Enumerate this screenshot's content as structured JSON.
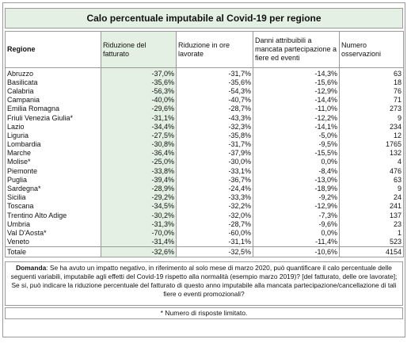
{
  "title": "Calo percentuale imputabile al Covid-19 per regione",
  "headers": {
    "region": "Regione",
    "fatturato": "Riduzione del fatturato",
    "ore": "Riduzione in ore lavorate",
    "danni": "Danni attribuibili a mancata partecipazione a fiere ed eventi",
    "osservazioni": "Numero osservazioni"
  },
  "rows": [
    {
      "region": "Abruzzo",
      "fatturato": "-37,0%",
      "ore": "-31,7%",
      "danni": "-14,3%",
      "n": "63"
    },
    {
      "region": "Basilicata",
      "fatturato": "-35,6%",
      "ore": "-35,6%",
      "danni": "-15,6%",
      "n": "18"
    },
    {
      "region": "Calabria",
      "fatturato": "-56,3%",
      "ore": "-54,3%",
      "danni": "-12,9%",
      "n": "76"
    },
    {
      "region": "Campania",
      "fatturato": "-40,0%",
      "ore": "-40,7%",
      "danni": "-14,4%",
      "n": "71"
    },
    {
      "region": "Emilia Romagna",
      "fatturato": "-29,6%",
      "ore": "-28,7%",
      "danni": "-11,0%",
      "n": "273"
    },
    {
      "region": "Friuli Venezia Giulia*",
      "fatturato": "-31,1%",
      "ore": "-43,3%",
      "danni": "-12,2%",
      "n": "9"
    },
    {
      "region": "Lazio",
      "fatturato": "-34,4%",
      "ore": "-32,3%",
      "danni": "-14,1%",
      "n": "234"
    },
    {
      "region": "Liguria",
      "fatturato": "-27,5%",
      "ore": "-35,8%",
      "danni": "-5,0%",
      "n": "12"
    },
    {
      "region": "Lombardia",
      "fatturato": "-30,8%",
      "ore": "-31,7%",
      "danni": "-9,5%",
      "n": "1765"
    },
    {
      "region": "Marche",
      "fatturato": "-36,4%",
      "ore": "-37,9%",
      "danni": "-15,5%",
      "n": "132"
    },
    {
      "region": "Molise*",
      "fatturato": "-25,0%",
      "ore": "-30,0%",
      "danni": "0,0%",
      "n": "4"
    },
    {
      "region": "Piemonte",
      "fatturato": "-33,8%",
      "ore": "-33,1%",
      "danni": "-8,4%",
      "n": "476"
    },
    {
      "region": "Puglia",
      "fatturato": "-39,4%",
      "ore": "-36,7%",
      "danni": "-13,0%",
      "n": "63"
    },
    {
      "region": "Sardegna*",
      "fatturato": "-28,9%",
      "ore": "-24,4%",
      "danni": "-18,9%",
      "n": "9"
    },
    {
      "region": "Sicilia",
      "fatturato": "-29,2%",
      "ore": "-33,3%",
      "danni": "-9,2%",
      "n": "24"
    },
    {
      "region": "Toscana",
      "fatturato": "-34,5%",
      "ore": "-32,2%",
      "danni": "-12,9%",
      "n": "241"
    },
    {
      "region": "Trentino Alto Adige",
      "fatturato": "-30,2%",
      "ore": "-32,0%",
      "danni": "-7,3%",
      "n": "137"
    },
    {
      "region": "Umbria",
      "fatturato": "-31,3%",
      "ore": "-28,7%",
      "danni": "-9,6%",
      "n": "23"
    },
    {
      "region": "Val D'Aosta*",
      "fatturato": "-70,0%",
      "ore": "-60,0%",
      "danni": "0,0%",
      "n": "1"
    },
    {
      "region": "Veneto",
      "fatturato": "-31,4%",
      "ore": "-31,1%",
      "danni": "-11,4%",
      "n": "523"
    }
  ],
  "total": {
    "region": "Totale",
    "fatturato": "-32,6%",
    "ore": "-32,5%",
    "danni": "-10,6%",
    "n": "4154"
  },
  "question": {
    "label": "Domanda",
    "text": ": Se ha avuto un impatto negativo, in riferimento al solo mese di marzo 2020, può quantificare il calo percentuale delle seguenti variabili, imputabile agli effetti del Covid-19 rispetto alla normalità (esempio marzo 2019)? [del fatturato, delle ore lavorate]; Se si, può indicare la riduzione percentuale del fatturato di questo anno imputabile alla mancata partecipazione/cancellazione di tali fiere o eventi promozionali?"
  },
  "footnote": "* Numero di risposte limitato."
}
